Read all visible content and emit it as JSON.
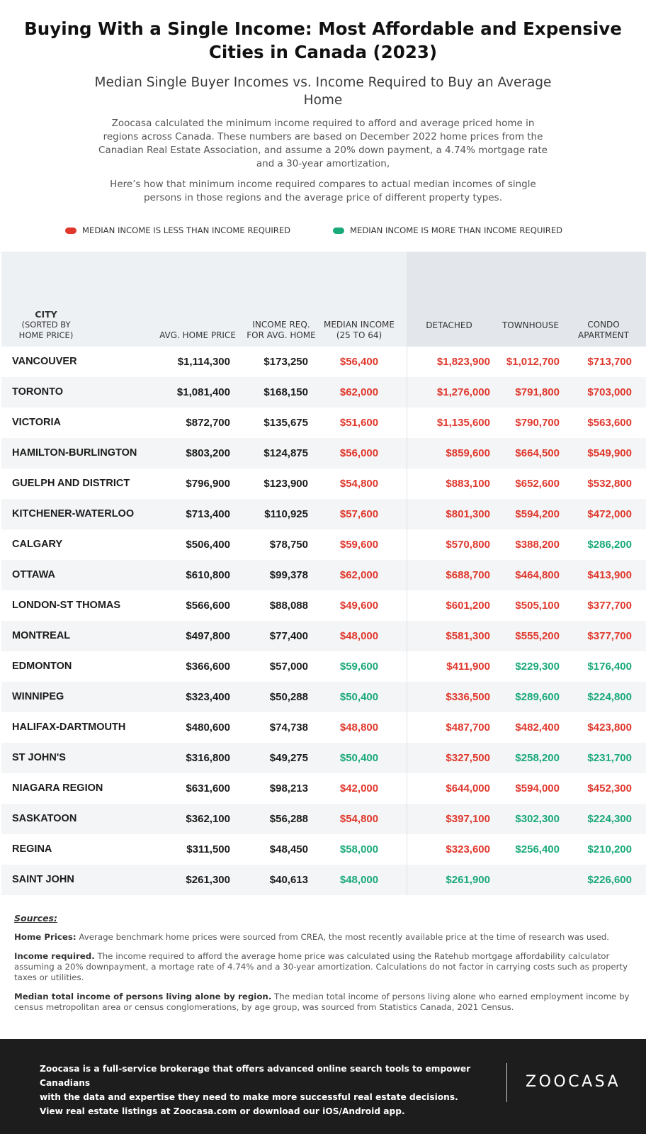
{
  "title": "Buying With a Single Income: Most Affordable and Expensive Cities in Canada (2023)",
  "subtitle": "Median Single Buyer Incomes vs. Income Required to Buy an Average Home",
  "intro_1": "Zoocasa calculated the minimum income required to afford and average priced home in regions across Canada. These numbers are based on December 2022 home prices from the Canadian Real Estate Association, and assume a 20% down payment, a 4.74% mortgage rate and a 30-year amortization,",
  "intro_2": "Here’s how that minimum income required compares to actual median incomes of single persons in those regions and the average price of different property types.",
  "legend": {
    "less": {
      "label": "MEDIAN INCOME IS LESS THAN INCOME REQUIRED",
      "color": "#e0382d"
    },
    "more": {
      "label": "MEDIAN INCOME IS MORE THAN INCOME REQUIRED",
      "color": "#1aa979"
    }
  },
  "chart_data": {
    "type": "table",
    "columns": {
      "city_1": "CITY",
      "city_2": "(SORTED BY HOME PRICE)",
      "avg": "AVG. HOME PRICE",
      "req": "INCOME REQ. FOR AVG. HOME",
      "med": "MEDIAN INCOME (25 TO 64)",
      "det": "DETACHED",
      "town": "TOWNHOUSE",
      "condo": "CONDO APARTMENT"
    },
    "rows": [
      {
        "city": "VANCOUVER",
        "avg": "$1,114,300",
        "req": "$173,250",
        "med": "$56,400",
        "med_c": "red",
        "det": "$1,823,900",
        "det_c": "red",
        "town": "$1,012,700",
        "town_c": "red",
        "condo": "$713,700",
        "condo_c": "red"
      },
      {
        "city": "TORONTO",
        "avg": "$1,081,400",
        "req": "$168,150",
        "med": "$62,000",
        "med_c": "red",
        "det": "$1,276,000",
        "det_c": "red",
        "town": "$791,800",
        "town_c": "red",
        "condo": "$703,000",
        "condo_c": "red"
      },
      {
        "city": "VICTORIA",
        "avg": "$872,700",
        "req": "$135,675",
        "med": "$51,600",
        "med_c": "red",
        "det": "$1,135,600",
        "det_c": "red",
        "town": "$790,700",
        "town_c": "red",
        "condo": "$563,600",
        "condo_c": "red"
      },
      {
        "city": "HAMILTON-BURLINGTON",
        "avg": "$803,200",
        "req": "$124,875",
        "med": "$56,000",
        "med_c": "red",
        "det": "$859,600",
        "det_c": "red",
        "town": "$664,500",
        "town_c": "red",
        "condo": "$549,900",
        "condo_c": "red"
      },
      {
        "city": "GUELPH AND DISTRICT",
        "avg": "$796,900",
        "req": "$123,900",
        "med": "$54,800",
        "med_c": "red",
        "det": "$883,100",
        "det_c": "red",
        "town": "$652,600",
        "town_c": "red",
        "condo": "$532,800",
        "condo_c": "red"
      },
      {
        "city": "KITCHENER-WATERLOO",
        "avg": "$713,400",
        "req": "$110,925",
        "med": "$57,600",
        "med_c": "red",
        "det": "$801,300",
        "det_c": "red",
        "town": "$594,200",
        "town_c": "red",
        "condo": "$472,000",
        "condo_c": "red"
      },
      {
        "city": "CALGARY",
        "avg": "$506,400",
        "req": "$78,750",
        "med": "$59,600",
        "med_c": "red",
        "det": "$570,800",
        "det_c": "red",
        "town": "$388,200",
        "town_c": "red",
        "condo": "$286,200",
        "condo_c": "green"
      },
      {
        "city": "OTTAWA",
        "avg": "$610,800",
        "req": "$99,378",
        "med": "$62,000",
        "med_c": "red",
        "det": "$688,700",
        "det_c": "red",
        "town": "$464,800",
        "town_c": "red",
        "condo": "$413,900",
        "condo_c": "red"
      },
      {
        "city": "LONDON-ST THOMAS",
        "avg": "$566,600",
        "req": "$88,088",
        "med": "$49,600",
        "med_c": "red",
        "det": "$601,200",
        "det_c": "red",
        "town": "$505,100",
        "town_c": "red",
        "condo": "$377,700",
        "condo_c": "red"
      },
      {
        "city": "MONTREAL",
        "avg": "$497,800",
        "req": "$77,400",
        "med": "$48,000",
        "med_c": "red",
        "det": "$581,300",
        "det_c": "red",
        "town": "$555,200",
        "town_c": "red",
        "condo": "$377,700",
        "condo_c": "red"
      },
      {
        "city": "EDMONTON",
        "avg": "$366,600",
        "req": "$57,000",
        "med": "$59,600",
        "med_c": "green",
        "det": "$411,900",
        "det_c": "red",
        "town": "$229,300",
        "town_c": "green",
        "condo": "$176,400",
        "condo_c": "green"
      },
      {
        "city": "WINNIPEG",
        "avg": "$323,400",
        "req": "$50,288",
        "med": "$50,400",
        "med_c": "green",
        "det": "$336,500",
        "det_c": "red",
        "town": "$289,600",
        "town_c": "green",
        "condo": "$224,800",
        "condo_c": "green"
      },
      {
        "city": "HALIFAX-DARTMOUTH",
        "avg": "$480,600",
        "req": "$74,738",
        "med": "$48,800",
        "med_c": "red",
        "det": "$487,700",
        "det_c": "red",
        "town": "$482,400",
        "town_c": "red",
        "condo": "$423,800",
        "condo_c": "red"
      },
      {
        "city": "ST JOHN'S",
        "avg": "$316,800",
        "req": "$49,275",
        "med": "$50,400",
        "med_c": "green",
        "det": "$327,500",
        "det_c": "red",
        "town": "$258,200",
        "town_c": "green",
        "condo": "$231,700",
        "condo_c": "green"
      },
      {
        "city": "NIAGARA REGION",
        "avg": "$631,600",
        "req": "$98,213",
        "med": "$42,000",
        "med_c": "red",
        "det": "$644,000",
        "det_c": "red",
        "town": "$594,000",
        "town_c": "red",
        "condo": "$452,300",
        "condo_c": "red"
      },
      {
        "city": "SASKATOON",
        "avg": "$362,100",
        "req": "$56,288",
        "med": "$54,800",
        "med_c": "red",
        "det": "$397,100",
        "det_c": "red",
        "town": "$302,300",
        "town_c": "green",
        "condo": "$224,300",
        "condo_c": "green"
      },
      {
        "city": "REGINA",
        "avg": "$311,500",
        "req": "$48,450",
        "med": "$58,000",
        "med_c": "green",
        "det": "$323,600",
        "det_c": "red",
        "town": "$256,400",
        "town_c": "green",
        "condo": "$210,200",
        "condo_c": "green"
      },
      {
        "city": "SAINT JOHN",
        "avg": "$261,300",
        "req": "$40,613",
        "med": "$48,000",
        "med_c": "green",
        "det": "$261,900",
        "det_c": "green",
        "town": "",
        "town_c": "green",
        "condo": "$226,600",
        "condo_c": "green"
      }
    ]
  },
  "sources": {
    "heading": "Sources:",
    "home_prices_label": "Home Prices:",
    "home_prices_text": " Average benchmark home prices were sourced from CREA, the most recently available price at the time of research was used.",
    "income_required_label": "Income required.",
    "income_required_text": " The income required to afford the average home price was calculated using the Ratehub mortgage affordability calculator assuming a 20% downpayment, a mortage rate of 4.74% and a 30-year amortization. Calculations do not factor in carrying costs such as property taxes or utilities.",
    "median_label": "Median total income of persons living alone by region.",
    "median_text": " The median total income of persons living alone who earned employment income by census metropolitan area or census conglomerations, by age group, was sourced from Statistics Canada, 2021 Census."
  },
  "footer": {
    "line1": "Zoocasa is a full-service brokerage that offers advanced online search tools to empower Canadians",
    "line2": "with the data and expertise they need to make more successful real estate decisions.",
    "line3": "View real estate listings at Zoocasa.com or download our iOS/Android app.",
    "logo": "ZOOCASA"
  }
}
